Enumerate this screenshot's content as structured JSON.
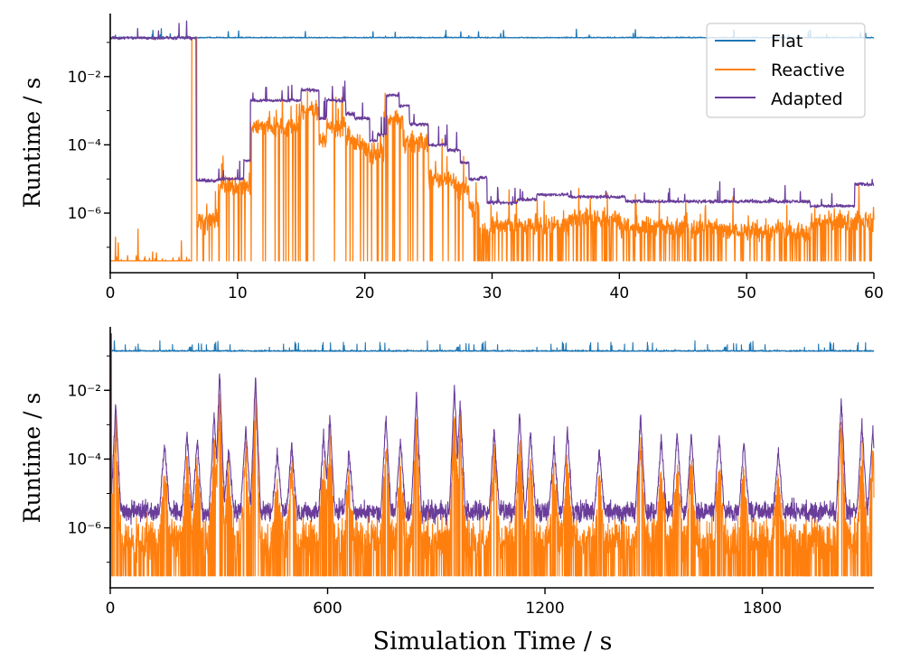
{
  "chart_data": [
    {
      "type": "line",
      "ylabel": "Runtime / s",
      "xlabel": "",
      "yscale": "log",
      "xlim": [
        0,
        60
      ],
      "ylim": [
        1.8e-08,
        0.7
      ],
      "xticks": [
        "0",
        "10",
        "20",
        "30",
        "40",
        "50",
        "60"
      ],
      "xtick_values": [
        0,
        10,
        20,
        30,
        40,
        50,
        60
      ],
      "yticks": [
        "10⁻²",
        "10⁻⁴",
        "10⁻⁶"
      ],
      "ytick_values": [
        0.01,
        0.0001,
        1e-06
      ],
      "legend": {
        "position": "top-right",
        "entries": [
          "Flat",
          "Reactive",
          "Adapted"
        ]
      },
      "series": [
        {
          "name": "Flat",
          "color": "#1f77b4",
          "steps": [
            [
              0,
              0.135
            ],
            [
              60,
              0.135
            ]
          ]
        },
        {
          "name": "Reactive",
          "color": "#ff7f0e",
          "floor": 4e-08,
          "steps": [
            [
              0,
              3e-08
            ],
            [
              6.4,
              0.135
            ],
            [
              6.8,
              6e-07
            ],
            [
              8.5,
              6e-06
            ],
            [
              11,
              0.00035
            ],
            [
              15,
              0.001
            ],
            [
              16.4,
              0.00015
            ],
            [
              17,
              0.00035
            ],
            [
              18.5,
              0.00012
            ],
            [
              20,
              6e-05
            ],
            [
              21.5,
              0.0005
            ],
            [
              23,
              0.00012
            ],
            [
              25,
              1e-05
            ],
            [
              27,
              5e-06
            ],
            [
              28.2,
              1.5e-06
            ],
            [
              29,
              3e-07
            ],
            [
              30,
              4.5e-07
            ],
            [
              36,
              7e-07
            ],
            [
              40,
              4e-07
            ],
            [
              48,
              3e-07
            ],
            [
              55,
              6e-07
            ],
            [
              60,
              6e-07
            ]
          ]
        },
        {
          "name": "Adapted",
          "color": "#6a3d9a",
          "steps": [
            [
              0,
              0.135
            ],
            [
              6.75,
              9e-06
            ],
            [
              8.5,
              1e-05
            ],
            [
              10.5,
              3.5e-05
            ],
            [
              11,
              0.002
            ],
            [
              15,
              0.004
            ],
            [
              16.4,
              0.0006
            ],
            [
              17,
              0.002
            ],
            [
              18.5,
              0.0008
            ],
            [
              19.2,
              0.0006
            ],
            [
              20.4,
              0.00013
            ],
            [
              21,
              0.0002
            ],
            [
              21.7,
              0.0028
            ],
            [
              22.7,
              0.0014
            ],
            [
              23.5,
              0.0004
            ],
            [
              25,
              0.0001
            ],
            [
              26.5,
              7e-05
            ],
            [
              27.5,
              3e-05
            ],
            [
              28.2,
              1e-05
            ],
            [
              29,
              1.1e-05
            ],
            [
              29.6,
              2e-06
            ],
            [
              32,
              2.5e-06
            ],
            [
              33.5,
              3.5e-06
            ],
            [
              36,
              3e-06
            ],
            [
              40.5,
              2.2e-06
            ],
            [
              55,
              1.6e-06
            ],
            [
              58.5,
              7e-06
            ],
            [
              60,
              7e-06
            ]
          ]
        }
      ]
    },
    {
      "type": "line",
      "ylabel": "Runtime / s",
      "xlabel": "Simulation Time / s",
      "yscale": "log",
      "xlim": [
        0,
        2108
      ],
      "ylim": [
        1.8e-08,
        0.7
      ],
      "xticks": [
        "0",
        "600",
        "1200",
        "1800"
      ],
      "xtick_values": [
        0,
        600,
        1200,
        1800
      ],
      "yticks": [
        "10⁻²",
        "10⁻⁴",
        "10⁻⁶"
      ],
      "ytick_values": [
        0.01,
        0.0001,
        1e-06
      ],
      "series": [
        {
          "name": "Flat",
          "color": "#1f77b4",
          "baseline": 0.135
        },
        {
          "name": "Reactive",
          "color": "#ff7f0e",
          "baseline": 3e-07,
          "floor": 4e-08
        },
        {
          "name": "Adapted",
          "color": "#6a3d9a",
          "baseline": 3e-06,
          "peaks": [
            [
              15,
              0.0041
            ],
            [
              150,
              0.0003
            ],
            [
              212,
              0.00066
            ],
            [
              240,
              0.00035
            ],
            [
              287,
              0.0021
            ],
            [
              302,
              0.032
            ],
            [
              327,
              0.0002
            ],
            [
              374,
              0.0009
            ],
            [
              401,
              0.028
            ],
            [
              461,
              0.00016
            ],
            [
              501,
              0.00025
            ],
            [
              589,
              0.0005
            ],
            [
              606,
              0.0018
            ],
            [
              659,
              0.00016
            ],
            [
              761,
              0.0018
            ],
            [
              801,
              0.0004
            ],
            [
              845,
              0.0079
            ],
            [
              950,
              0.013
            ],
            [
              966,
              0.0055
            ],
            [
              1060,
              0.0007
            ],
            [
              1130,
              0.0022
            ],
            [
              1160,
              0.0007
            ],
            [
              1225,
              0.00028
            ],
            [
              1262,
              0.0008
            ],
            [
              1350,
              0.0002
            ],
            [
              1464,
              0.0018
            ],
            [
              1521,
              0.0004
            ],
            [
              1565,
              0.00056
            ],
            [
              1604,
              0.00056
            ],
            [
              1681,
              0.0005
            ],
            [
              1749,
              0.00035
            ],
            [
              1844,
              0.00016
            ],
            [
              2018,
              0.0063
            ],
            [
              2075,
              0.0011
            ],
            [
              2105,
              0.0008
            ]
          ]
        }
      ]
    }
  ]
}
